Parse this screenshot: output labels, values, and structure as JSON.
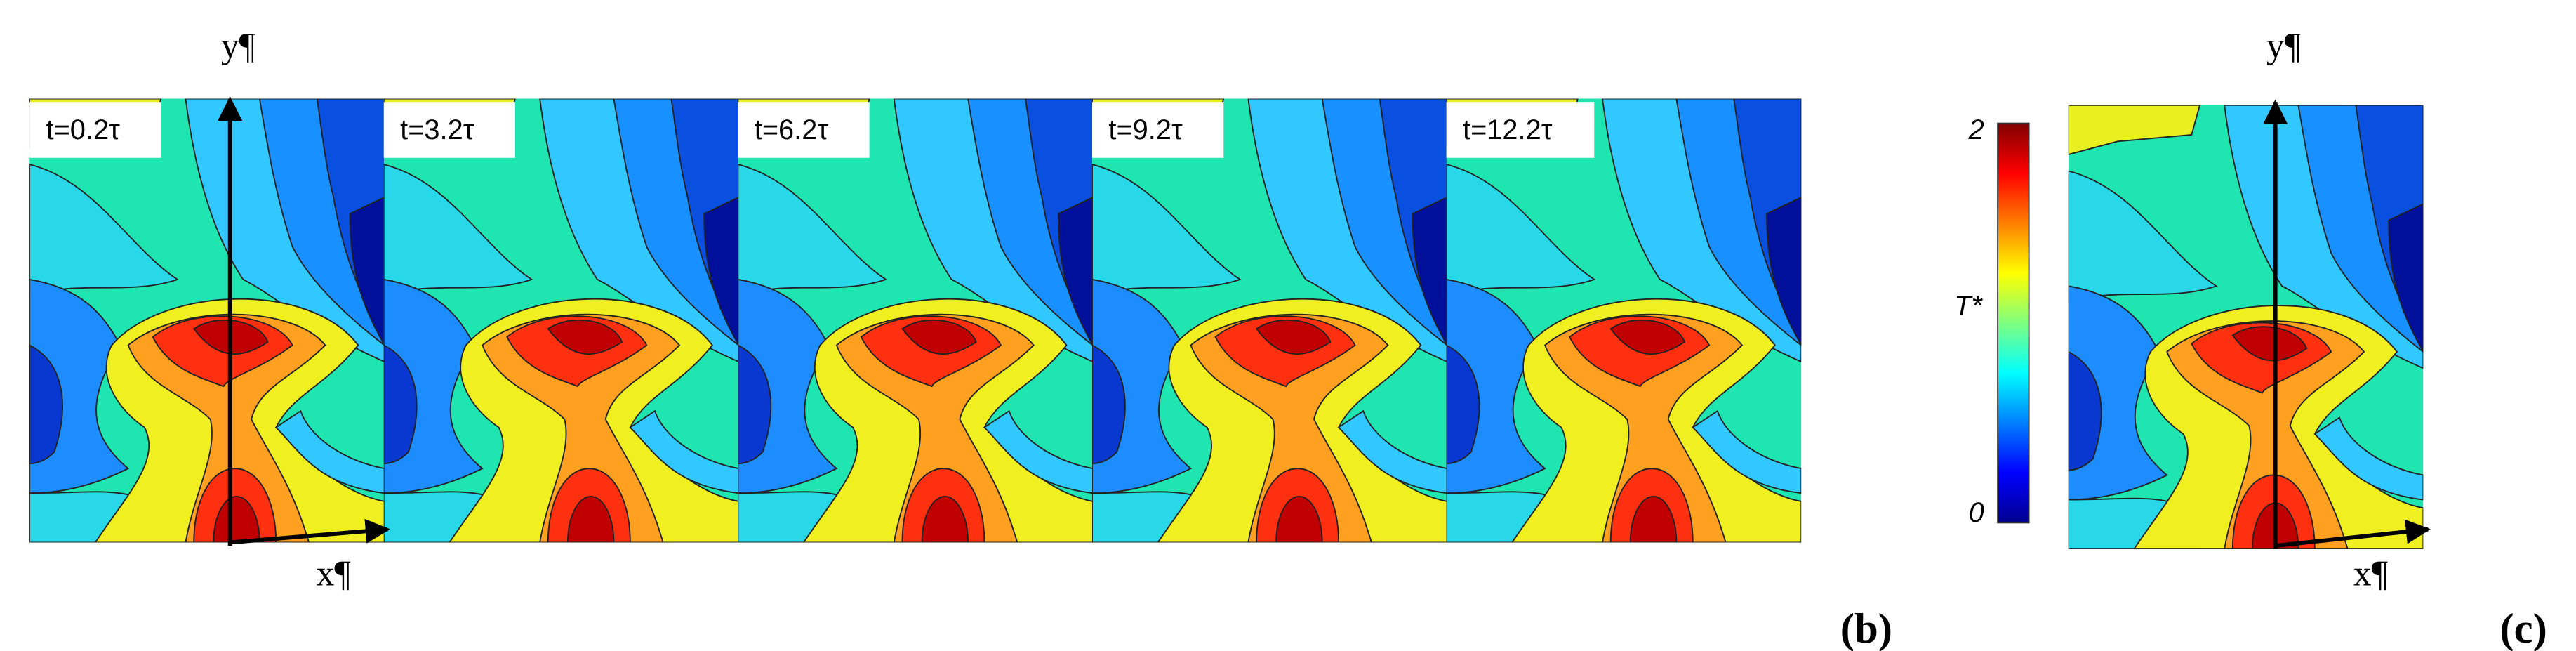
{
  "panels_b": {
    "frames": [
      "t=0.2τ",
      "t=3.2τ",
      "t=6.2τ",
      "t=9.2τ",
      "t=12.2τ"
    ],
    "y_axis": "y¶",
    "x_axis": "x¶",
    "tag": "(b)"
  },
  "colorbar": {
    "max": "2",
    "label": "T*",
    "min": "0"
  },
  "panel_c": {
    "y_axis": "y¶",
    "x_axis": "x¶",
    "tag": "(c)"
  }
}
